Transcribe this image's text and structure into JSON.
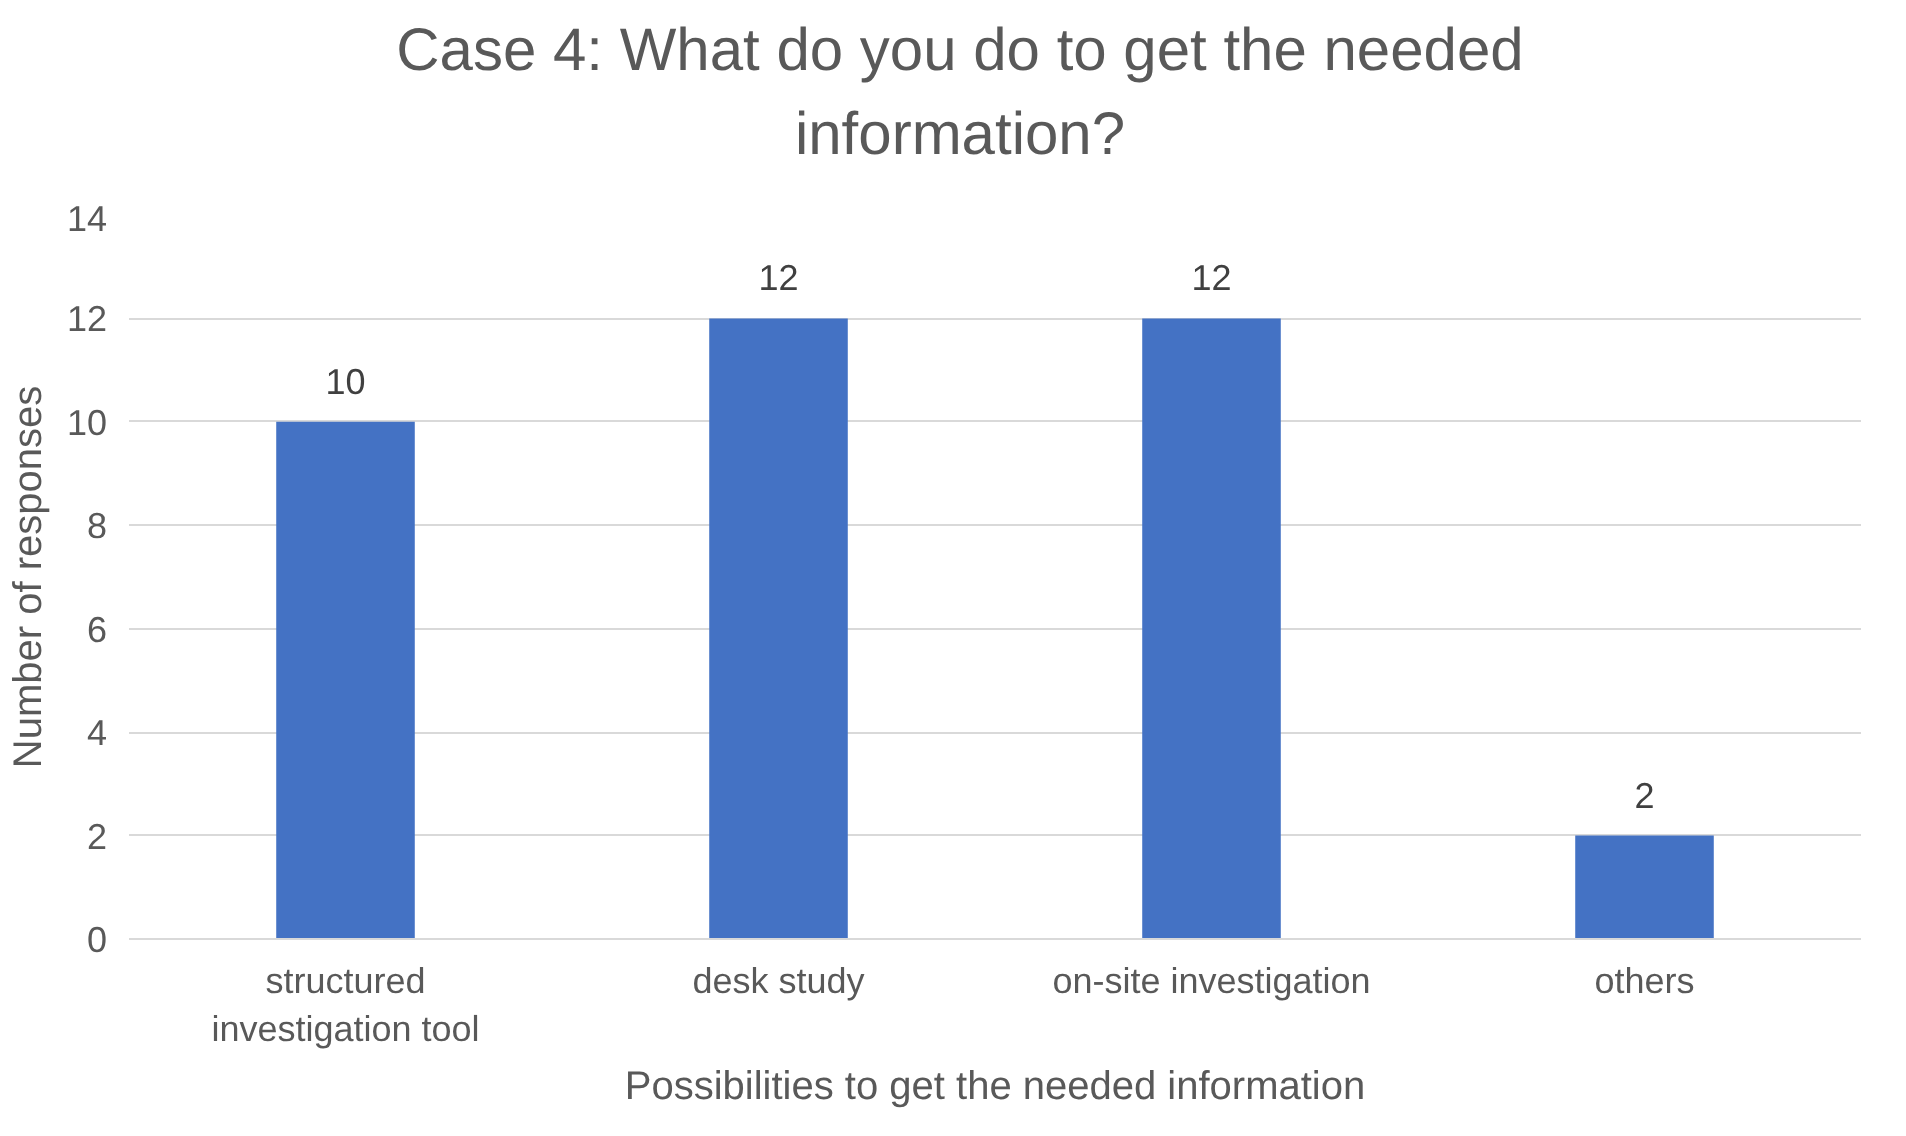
{
  "chart_data": {
    "type": "bar",
    "title": "Case 4: What do you do to get the needed information?",
    "xlabel": "Possibilities to get the needed information",
    "ylabel": "Number of responses",
    "categories": [
      "structured investigation tool",
      "desk study",
      "on-site investigation",
      "others"
    ],
    "values": [
      10,
      12,
      12,
      2
    ],
    "color": "#4472c4",
    "data_labels": true,
    "ylim": [
      0,
      14
    ],
    "yticks": [
      0,
      2,
      4,
      6,
      8,
      10,
      12,
      14
    ],
    "grid": "y"
  }
}
